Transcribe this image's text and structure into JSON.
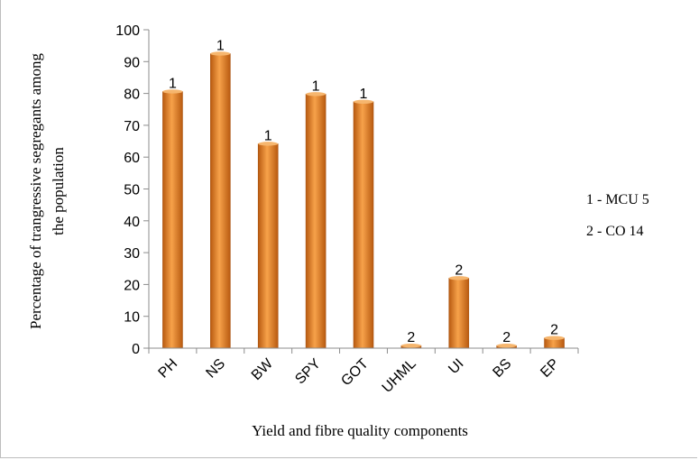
{
  "chart_data": {
    "type": "bar",
    "title": "",
    "xlabel": "Yield and fibre quality components",
    "ylabel_line1": "Percentage of trangressive segregants among",
    "ylabel_line2": "the population",
    "ylim": [
      0,
      100
    ],
    "yticks": [
      0,
      10,
      20,
      30,
      40,
      50,
      60,
      70,
      80,
      90,
      100
    ],
    "categories": [
      "PH",
      "NS",
      "BW",
      "SPY",
      "GOT",
      "UHML",
      "UI",
      "BS",
      "EP"
    ],
    "values": [
      80.6,
      92.5,
      64.2,
      79.8,
      77.4,
      0.8,
      22.0,
      0.8,
      3.2
    ],
    "data_labels": [
      "1",
      "1",
      "1",
      "1",
      "1",
      "2",
      "2",
      "2",
      "2"
    ],
    "bar_color": "#e8862a",
    "grid": false,
    "legend": {
      "placement": "right",
      "entries": [
        "1 - MCU 5",
        "2 - CO 14"
      ]
    }
  }
}
